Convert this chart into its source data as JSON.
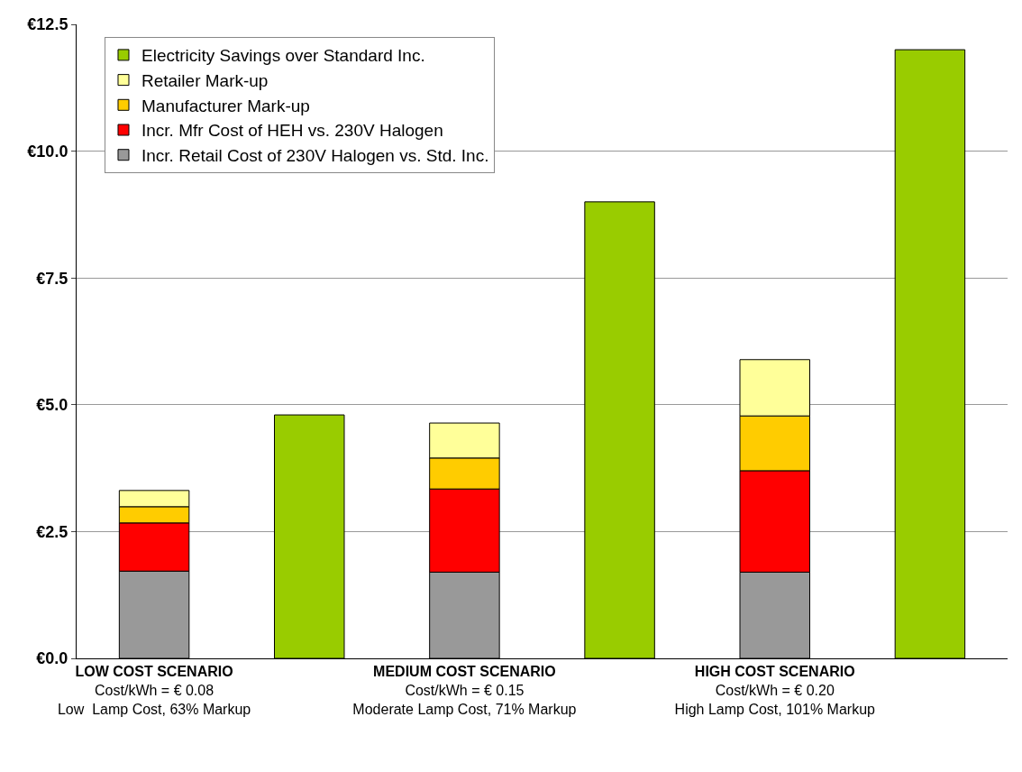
{
  "chart_data": {
    "type": "bar",
    "stacked": true,
    "categories": [
      "LOW COST SCENARIO\nCost/kWh = € 0.08\nLow  Lamp Cost, 63% Markup",
      null,
      "MEDIUM COST SCENARIO\nCost/kWh = € 0.15\nModerate Lamp Cost, 71% Markup",
      null,
      "HIGH COST SCENARIO\nCost/kWh = € 0.20\nHigh Lamp Cost, 101% Markup",
      null
    ],
    "series": [
      {
        "name": "Incr. Retail Cost of 230V Halogen vs. Std. Inc.",
        "color": "#999999",
        "values": [
          1.72,
          null,
          1.7,
          null,
          1.7,
          null
        ]
      },
      {
        "name": "Incr. Mfr Cost of HEH vs. 230V Halogen",
        "color": "#ff0000",
        "values": [
          0.95,
          null,
          1.64,
          null,
          2.0,
          null
        ]
      },
      {
        "name": "Manufacturer Mark-up",
        "color": "#ffcc00",
        "values": [
          0.32,
          null,
          0.61,
          null,
          1.08,
          null
        ]
      },
      {
        "name": "Retailer Mark-up",
        "color": "#ffff99",
        "values": [
          0.32,
          null,
          0.69,
          null,
          1.11,
          null
        ]
      },
      {
        "name": "Electricity Savings over Standard Inc.",
        "color": "#99cc00",
        "values": [
          null,
          4.8,
          null,
          9.0,
          null,
          12.0
        ]
      }
    ],
    "ylim": [
      0,
      12.5
    ],
    "yticks": [
      {
        "value": 0,
        "label": "€0.0"
      },
      {
        "value": 2.5,
        "label": "€2.5"
      },
      {
        "value": 5,
        "label": "€5.0"
      },
      {
        "value": 7.5,
        "label": "€7.5"
      },
      {
        "value": 10,
        "label": "€10.0"
      },
      {
        "value": 12.5,
        "label": "€12.5"
      }
    ],
    "grid": "y",
    "legend": "top left"
  }
}
